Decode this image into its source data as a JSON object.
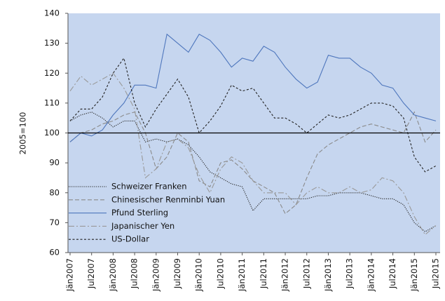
{
  "chart_data": {
    "type": "line",
    "y_label": "2005=100",
    "categories": [
      "Jän2007",
      null,
      "Jul2007",
      null,
      "Jän2008",
      null,
      "Jul2008",
      null,
      "Jän2009",
      null,
      "Jul2009",
      null,
      "Jän2010",
      null,
      "Jul2010",
      null,
      "Jän2011",
      null,
      "Jul2011",
      null,
      "Jän2012",
      null,
      "Jul2012",
      null,
      "Jän2013",
      null,
      "Jul2013",
      null,
      "Jän2014",
      null,
      "Jul2014",
      null,
      "Jän2015",
      null,
      "Jul2015"
    ],
    "ylim": [
      60,
      140
    ],
    "yticks": [
      60,
      70,
      80,
      90,
      100,
      110,
      120,
      130,
      140
    ],
    "reference_line": 100,
    "background": "#c6d6ef",
    "legend": "lower left",
    "series": [
      {
        "name": "Schweizer Franken",
        "color": "#222222",
        "dash": "1.2,1.6",
        "values": [
          104,
          106,
          107,
          105,
          102,
          104,
          104,
          97,
          98,
          97,
          98,
          96,
          92,
          87,
          85,
          83,
          82,
          74,
          78,
          78,
          78,
          78,
          78,
          79,
          79,
          80,
          80,
          80,
          79,
          78,
          78,
          76,
          70,
          67,
          69
        ]
      },
      {
        "name": "Chinesischer Renminbi Yuan",
        "color": "#8a8a8a",
        "dash": "6,3",
        "values": [
          97,
          100,
          101,
          103,
          104,
          106,
          107,
          100,
          88,
          92,
          100,
          97,
          84,
          82,
          90,
          91,
          88,
          84,
          82,
          80,
          73,
          76,
          85,
          93,
          96,
          98,
          100,
          102,
          103,
          102,
          101,
          100,
          107,
          97,
          101
        ]
      },
      {
        "name": "Pfund Sterling",
        "color": "#4f77bd",
        "dash": "none",
        "values": [
          97,
          100,
          99,
          101,
          106,
          110,
          116,
          116,
          115,
          133,
          130,
          127,
          133,
          131,
          127,
          122,
          125,
          124,
          129,
          127,
          122,
          118,
          115,
          117,
          126,
          125,
          125,
          122,
          120,
          116,
          115,
          110,
          106,
          105,
          104
        ]
      },
      {
        "name": "Japanischer Yen",
        "color": "#999999",
        "dash": "8,3,2,3",
        "values": [
          114,
          119,
          116,
          118,
          120,
          115,
          108,
          85,
          88,
          97,
          98,
          95,
          86,
          80,
          88,
          92,
          90,
          84,
          80,
          80,
          80,
          76,
          80,
          82,
          80,
          80,
          82,
          80,
          81,
          85,
          84,
          80,
          72,
          66,
          69
        ]
      },
      {
        "name": "US-Dollar",
        "color": "#222222",
        "dash": "3,2.5",
        "values": [
          104,
          108,
          108,
          112,
          120,
          125,
          110,
          102,
          108,
          113,
          118,
          112,
          100,
          104,
          109,
          116,
          114,
          115,
          110,
          105,
          105,
          103,
          100,
          103,
          106,
          105,
          106,
          108,
          110,
          110,
          109,
          105,
          92,
          87,
          89
        ]
      }
    ]
  }
}
